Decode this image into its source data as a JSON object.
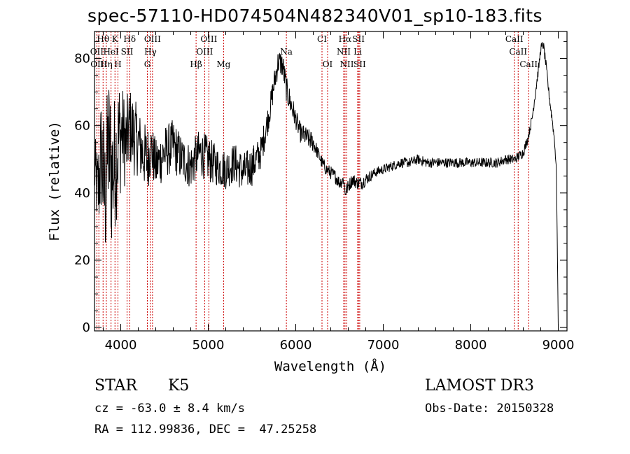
{
  "chart_data": {
    "type": "line",
    "title": "spec-57110-HD074504N482340V01_sp10-183.fits",
    "xlabel": "Wavelength (Å)",
    "ylabel": "Flux (relative)",
    "xlim": [
      3700,
      9100
    ],
    "ylim": [
      -1,
      88
    ],
    "xticks": [
      4000,
      5000,
      6000,
      7000,
      8000,
      9000
    ],
    "xtick_labels": [
      "4000",
      "5000",
      "6000",
      "7000",
      "8000",
      "9000"
    ],
    "yticks": [
      0,
      20,
      40,
      60,
      80
    ],
    "ytick_labels": [
      "0",
      "20",
      "40",
      "60",
      "80"
    ],
    "series": [
      {
        "name": "flux",
        "x": [
          3700,
          3740,
          3780,
          3820,
          3860,
          3900,
          3940,
          3980,
          4020,
          4060,
          4100,
          4150,
          4200,
          4250,
          4300,
          4350,
          4400,
          4500,
          4600,
          4700,
          4800,
          4900,
          5000,
          5100,
          5200,
          5300,
          5400,
          5500,
          5600,
          5700,
          5750,
          5800,
          5850,
          5900,
          5950,
          6000,
          6050,
          6100,
          6150,
          6200,
          6250,
          6300,
          6350,
          6400,
          6450,
          6500,
          6550,
          6563,
          6600,
          6650,
          6700,
          6750,
          6800,
          6900,
          7000,
          7100,
          7200,
          7300,
          7400,
          7500,
          7600,
          7700,
          7800,
          7900,
          8000,
          8100,
          8200,
          8300,
          8400,
          8500,
          8550,
          8600,
          8650,
          8700,
          8750,
          8780,
          8800,
          8830,
          8860,
          8900,
          8930,
          8960,
          8980,
          9000
        ],
        "y": [
          47,
          40,
          52,
          38,
          55,
          45,
          50,
          56,
          58,
          54,
          60,
          57,
          55,
          52,
          50,
          53,
          48,
          52,
          54,
          50,
          48,
          52,
          50,
          48,
          47,
          49,
          46,
          48,
          52,
          64,
          72,
          79,
          78,
          70,
          66,
          62,
          58,
          57,
          56,
          55,
          52,
          49,
          47,
          46,
          45,
          43,
          44,
          40,
          42,
          44,
          43,
          43,
          44,
          46,
          47,
          48,
          49,
          49,
          50,
          49,
          49,
          49,
          49,
          49,
          49,
          49,
          49,
          49,
          50,
          50,
          51,
          52,
          56,
          62,
          72,
          78,
          83,
          84,
          78,
          68,
          62,
          55,
          45,
          0
        ],
        "noise": [
          10,
          14,
          20,
          22,
          22,
          24,
          20,
          20,
          14,
          14,
          12,
          12,
          10,
          10,
          10,
          8,
          8,
          8,
          8,
          7,
          7,
          7,
          7,
          6,
          6,
          6,
          6,
          6,
          5,
          4,
          4,
          4,
          4,
          4,
          4,
          3,
          3,
          3,
          3,
          3,
          2,
          2,
          2,
          2,
          2,
          2,
          2,
          2,
          2,
          2,
          2,
          2,
          2,
          1.5,
          1.5,
          1.5,
          1.5,
          1.5,
          1.5,
          1.5,
          1.5,
          1.5,
          1.5,
          1.5,
          1.5,
          1.5,
          1.5,
          1.5,
          1.5,
          1.5,
          1.5,
          1.5,
          1.5,
          1.5,
          1.5,
          1.5,
          1.5,
          1.5,
          1.5,
          1.5,
          1.5,
          1.5,
          1.5,
          0
        ]
      }
    ],
    "lines": [
      {
        "label": "Hθ",
        "wavelength": 3798,
        "row": 0
      },
      {
        "label": "K",
        "wavelength": 3934,
        "row": 0
      },
      {
        "label": "Hδ",
        "wavelength": 4102,
        "row": 0
      },
      {
        "label": "OIII",
        "wavelength": 4363,
        "row": 0
      },
      {
        "label": "OIII",
        "wavelength": 5007,
        "row": 0
      },
      {
        "label": "CI",
        "wavelength": 6300,
        "row": 0
      },
      {
        "label": "Hα",
        "wavelength": 6563,
        "row": 0
      },
      {
        "label": "SII",
        "wavelength": 6717,
        "row": 0
      },
      {
        "label": "CaII",
        "wavelength": 8498,
        "row": 0
      },
      {
        "label": "OII",
        "wavelength": 3727,
        "row": 1
      },
      {
        "label": "HeI",
        "wavelength": 3889,
        "row": 1
      },
      {
        "label": "SII",
        "wavelength": 4072,
        "row": 1
      },
      {
        "label": "Hγ",
        "wavelength": 4340,
        "row": 1
      },
      {
        "label": "OIII",
        "wavelength": 4959,
        "row": 1
      },
      {
        "label": "Na",
        "wavelength": 5893,
        "row": 1
      },
      {
        "label": "NII",
        "wavelength": 6548,
        "row": 1
      },
      {
        "label": "Li",
        "wavelength": 6708,
        "row": 1
      },
      {
        "label": "CaII",
        "wavelength": 8542,
        "row": 1
      },
      {
        "label": "OIII",
        "wavelength": 3750,
        "row": 2
      },
      {
        "label": "Hη",
        "wavelength": 3835,
        "row": 2
      },
      {
        "label": "H",
        "wavelength": 3968,
        "row": 2
      },
      {
        "label": "G",
        "wavelength": 4304,
        "row": 2
      },
      {
        "label": "Hβ",
        "wavelength": 4861,
        "row": 2
      },
      {
        "label": "Mg",
        "wavelength": 5175,
        "row": 2
      },
      {
        "label": "OI",
        "wavelength": 6364,
        "row": 2
      },
      {
        "label": "NII",
        "wavelength": 6584,
        "row": 2
      },
      {
        "label": "SII",
        "wavelength": 6731,
        "row": 2
      },
      {
        "label": "CaII",
        "wavelength": 8662,
        "row": 2
      }
    ]
  },
  "info": {
    "object_class": "STAR",
    "subclass": "K5",
    "cz": "cz = -63.0 ± 8.4 km/s",
    "coords": "RA = 112.99836, DEC =  47.25258",
    "survey": "LAMOST DR3",
    "obs_date": "Obs-Date: 20150328"
  },
  "colors": {
    "line_marker": "#cc0000",
    "spectrum": "#000000",
    "axes": "#000000"
  }
}
